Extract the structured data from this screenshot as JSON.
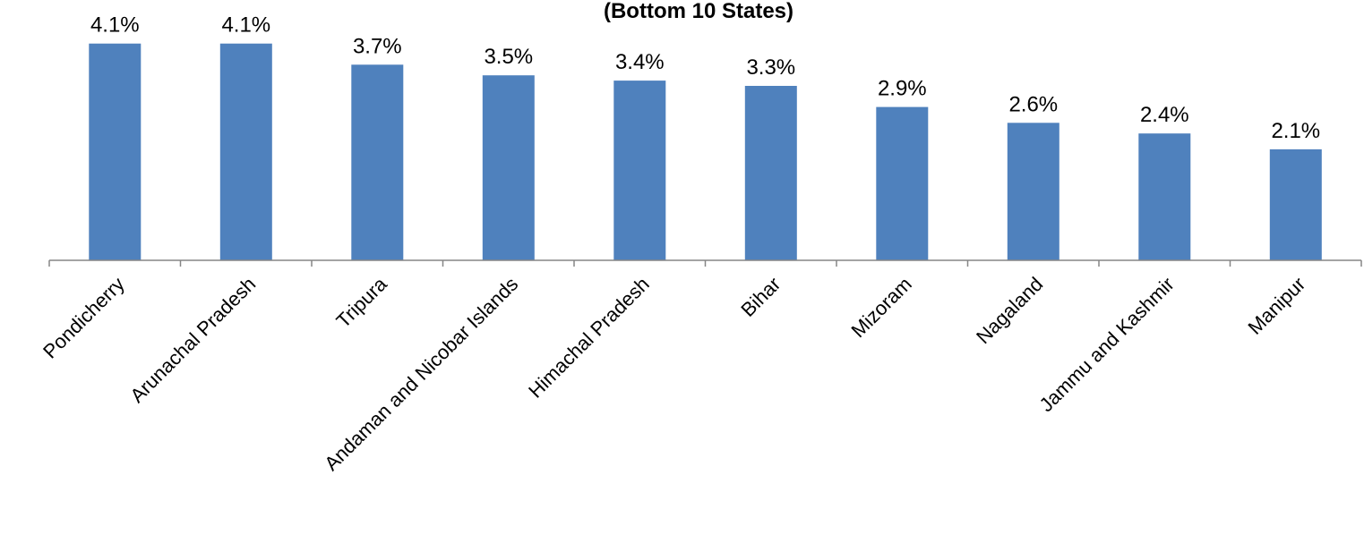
{
  "chart_data": {
    "type": "bar",
    "title": "(Bottom 10 States)",
    "categories": [
      "Pondicherry",
      "Arunachal Pradesh",
      "Tripura",
      "Andaman and Nicobar Islands",
      "Himachal Pradesh",
      "Bihar",
      "Mizoram",
      "Nagaland",
      "Jammu and Kashmir",
      "Manipur"
    ],
    "values": [
      4.1,
      4.1,
      3.7,
      3.5,
      3.4,
      3.3,
      2.9,
      2.6,
      2.4,
      2.1
    ],
    "data_labels": [
      "4.1%",
      "4.1%",
      "3.7%",
      "3.5%",
      "3.4%",
      "3.3%",
      "2.9%",
      "2.6%",
      "2.4%",
      "2.1%"
    ],
    "ylim": [
      0,
      4.5
    ],
    "grid": false,
    "legend": "none",
    "bar_color": "#4F81BD",
    "axis_color": "#868686"
  }
}
